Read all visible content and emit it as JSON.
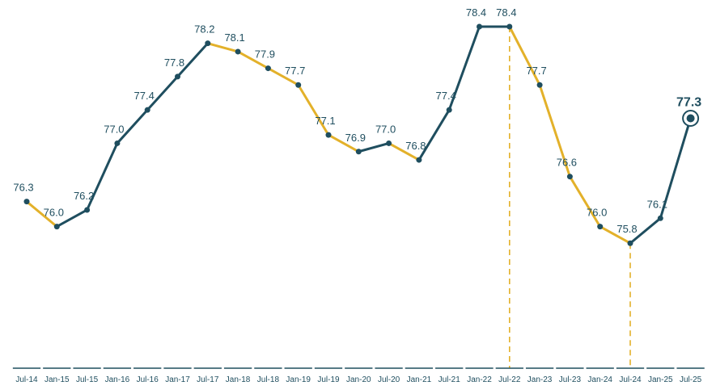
{
  "colors": {
    "up": "#1f4e5f",
    "down": "#e3b12a",
    "axis": "#1f4e5f",
    "text": "#1f4e5f",
    "background": "#ffffff"
  },
  "chart_data": {
    "type": "line",
    "title": "",
    "xlabel": "",
    "ylabel": "",
    "categories": [
      "Jul-14",
      "Jan-15",
      "Jul-15",
      "Jan-16",
      "Jul-16",
      "Jan-17",
      "Jul-17",
      "Jan-18",
      "Jul-18",
      "Jan-19",
      "Jul-19",
      "Jan-20",
      "Jul-20",
      "Jan-21",
      "Jul-21",
      "Jan-22",
      "Jul-22",
      "Jan-23",
      "Jul-23",
      "Jan-24",
      "Jul-24",
      "Jan-25",
      "Jul-25"
    ],
    "values": [
      76.3,
      76.0,
      76.2,
      77.0,
      77.4,
      77.8,
      78.2,
      78.1,
      77.9,
      77.7,
      77.1,
      76.9,
      77.0,
      76.8,
      77.4,
      78.4,
      78.4,
      77.7,
      76.6,
      76.0,
      75.8,
      76.1,
      77.3
    ],
    "value_labels": [
      "76.3",
      "76.0",
      "76.2",
      "77.0",
      "77.4",
      "77.8",
      "78.2",
      "78.1",
      "77.9",
      "77.7",
      "77.1",
      "76.9",
      "77.0",
      "76.8",
      "77.4",
      "78.4",
      "78.4",
      "77.7",
      "76.6",
      "76.0",
      "75.8",
      "76.1",
      "77.3"
    ],
    "segment_coloring": "segments that rise are dark teal, segments that fall are gold",
    "reference_lines_at": [
      "Jul-22",
      "Jul-24"
    ],
    "highlighted_point": "Jul-25",
    "ylim": [
      74.3,
      78.4
    ],
    "grid": false,
    "legend": "none"
  }
}
